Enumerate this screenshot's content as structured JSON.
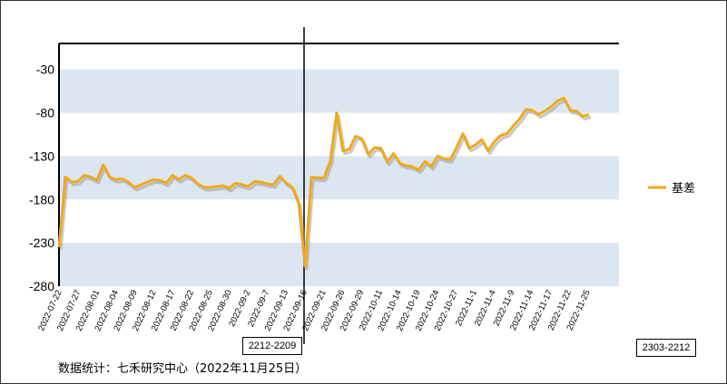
{
  "chart_data": {
    "type": "line",
    "title": "",
    "xlabel": "",
    "ylabel": "",
    "ylim": [
      -280,
      0
    ],
    "yticks": [
      -30,
      -80,
      -130,
      -180,
      -230,
      -280
    ],
    "grid": "alternating horizontal bands",
    "legend_position": "right",
    "x_tick_labels": [
      "2022-07-22",
      "2022-07-27",
      "2022-08-01",
      "2022-08-04",
      "2022-08-09",
      "2022-08-12",
      "2022-08-17",
      "2022-08-22",
      "2022-08-25",
      "2022-08-30",
      "2022-09-2",
      "2022-09-7",
      "2022-09-13",
      "2022-09-16",
      "2022-09-21",
      "2022-09-26",
      "2022-09-29",
      "2022-10-11",
      "2022-10-14",
      "2022-10-19",
      "2022-10-24",
      "2022-10-27",
      "2022-11-1",
      "2022-11-4",
      "2022-11-9",
      "2022-11-14",
      "2022-11-17",
      "2022-11-22",
      "2022-11-25"
    ],
    "series": [
      {
        "name": "基差",
        "color": "#F0A91C",
        "values": [
          -235,
          -154,
          -160,
          -159,
          -152,
          -154,
          -158,
          -140,
          -154,
          -157,
          -156,
          -160,
          -166,
          -163,
          -160,
          -157,
          -158,
          -161,
          -152,
          -157,
          -152,
          -155,
          -162,
          -166,
          -166,
          -165,
          -164,
          -167,
          -161,
          -163,
          -165,
          -159,
          -160,
          -162,
          -163,
          -153,
          -161,
          -166,
          -185,
          -257,
          -154,
          -155,
          -155,
          -135,
          -80,
          -124,
          -122,
          -107,
          -110,
          -128,
          -120,
          -121,
          -137,
          -127,
          -138,
          -141,
          -142,
          -146,
          -136,
          -142,
          -130,
          -133,
          -134,
          -120,
          -104,
          -121,
          -117,
          -111,
          -124,
          -113,
          -106,
          -104,
          -95,
          -87,
          -76,
          -77,
          -82,
          -78,
          -73,
          -66,
          -63,
          -77,
          -78,
          -84,
          -82
        ]
      }
    ],
    "vline_label": "2212-2209",
    "corner_label": "2303-2212"
  },
  "source": "数据统计：七禾研究中心（2022年11月25日）"
}
